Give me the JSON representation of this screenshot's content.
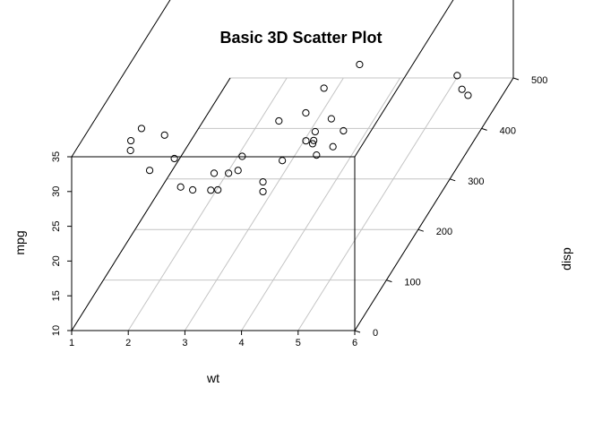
{
  "chart_data": {
    "type": "scatter",
    "title": "Basic 3D Scatter Plot",
    "xlabel": "wt",
    "ylabel": "disp",
    "zlabel": "mpg",
    "xlim": [
      1,
      6
    ],
    "ylim": [
      0,
      500
    ],
    "zlim": [
      10,
      35
    ],
    "x_ticks": [
      "1",
      "2",
      "3",
      "4",
      "5",
      "6"
    ],
    "y_ticks": [
      "0",
      "100",
      "200",
      "300",
      "400",
      "500"
    ],
    "z_ticks": [
      "10",
      "15",
      "20",
      "25",
      "30",
      "35"
    ],
    "grid": "on",
    "points": [
      {
        "x": 2.62,
        "y": 160.0,
        "z": 21.0
      },
      {
        "x": 2.875,
        "y": 160.0,
        "z": 21.0
      },
      {
        "x": 2.32,
        "y": 108.0,
        "z": 22.8
      },
      {
        "x": 3.215,
        "y": 258.0,
        "z": 21.4
      },
      {
        "x": 3.44,
        "y": 360.0,
        "z": 18.7
      },
      {
        "x": 3.46,
        "y": 225.0,
        "z": 18.1
      },
      {
        "x": 3.57,
        "y": 360.0,
        "z": 14.3
      },
      {
        "x": 3.19,
        "y": 146.7,
        "z": 24.4
      },
      {
        "x": 3.15,
        "y": 140.8,
        "z": 22.8
      },
      {
        "x": 3.44,
        "y": 167.6,
        "z": 19.2
      },
      {
        "x": 3.44,
        "y": 167.6,
        "z": 17.8
      },
      {
        "x": 4.07,
        "y": 275.8,
        "z": 16.4
      },
      {
        "x": 3.73,
        "y": 275.8,
        "z": 17.3
      },
      {
        "x": 3.78,
        "y": 275.8,
        "z": 15.2
      },
      {
        "x": 5.25,
        "y": 472.0,
        "z": 10.4
      },
      {
        "x": 5.424,
        "y": 460.0,
        "z": 10.4
      },
      {
        "x": 5.345,
        "y": 440.0,
        "z": 14.7
      },
      {
        "x": 2.2,
        "y": 78.7,
        "z": 32.4
      },
      {
        "x": 1.615,
        "y": 75.7,
        "z": 30.4
      },
      {
        "x": 1.835,
        "y": 71.1,
        "z": 33.9
      },
      {
        "x": 2.465,
        "y": 120.1,
        "z": 21.5
      },
      {
        "x": 3.52,
        "y": 318.0,
        "z": 15.5
      },
      {
        "x": 3.435,
        "y": 304.0,
        "z": 15.2
      },
      {
        "x": 3.84,
        "y": 350.0,
        "z": 13.3
      },
      {
        "x": 3.845,
        "y": 400.0,
        "z": 19.2
      },
      {
        "x": 1.935,
        "y": 79.0,
        "z": 27.3
      },
      {
        "x": 2.14,
        "y": 120.3,
        "z": 26.0
      },
      {
        "x": 1.513,
        "y": 95.1,
        "z": 30.4
      },
      {
        "x": 3.17,
        "y": 351.0,
        "z": 15.8
      },
      {
        "x": 2.77,
        "y": 145.0,
        "z": 19.7
      },
      {
        "x": 3.57,
        "y": 301.0,
        "z": 15.0
      },
      {
        "x": 2.78,
        "y": 121.0,
        "z": 21.4
      }
    ]
  }
}
